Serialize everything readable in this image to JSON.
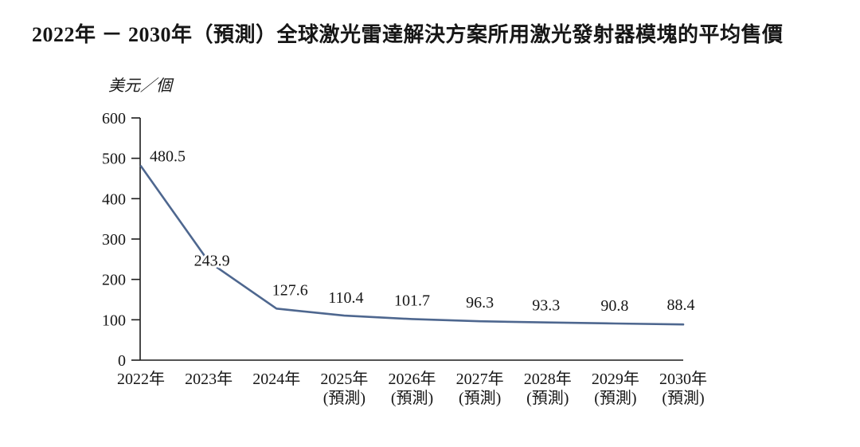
{
  "chart_data": {
    "type": "line",
    "title": "2022年 － 2030年（預測）全球激光雷達解決方案所用激光發射器模塊的平均售價",
    "unit_label": "美元／個",
    "categories": [
      "2022年",
      "2023年",
      "2024年",
      "2025年",
      "2026年",
      "2027年",
      "2028年",
      "2029年",
      "2030年"
    ],
    "forecast_flags": [
      false,
      false,
      false,
      true,
      true,
      true,
      true,
      true,
      true
    ],
    "forecast_suffix": "(預測)",
    "values": [
      480.5,
      243.9,
      127.6,
      110.4,
      101.7,
      96.3,
      93.3,
      90.8,
      88.4
    ],
    "data_labels": [
      "480.5",
      "243.9",
      "127.6",
      "110.4",
      "101.7",
      "96.3",
      "93.3",
      "90.8",
      "88.4"
    ],
    "ylim": [
      0,
      600
    ],
    "yticks": [
      0,
      100,
      200,
      300,
      400,
      500,
      600
    ],
    "grid": false,
    "legend": "none",
    "line_color": "#4e678f",
    "axis_color": "#1c1c1c",
    "text_color": "#161616",
    "background_color": "#ffffff"
  }
}
